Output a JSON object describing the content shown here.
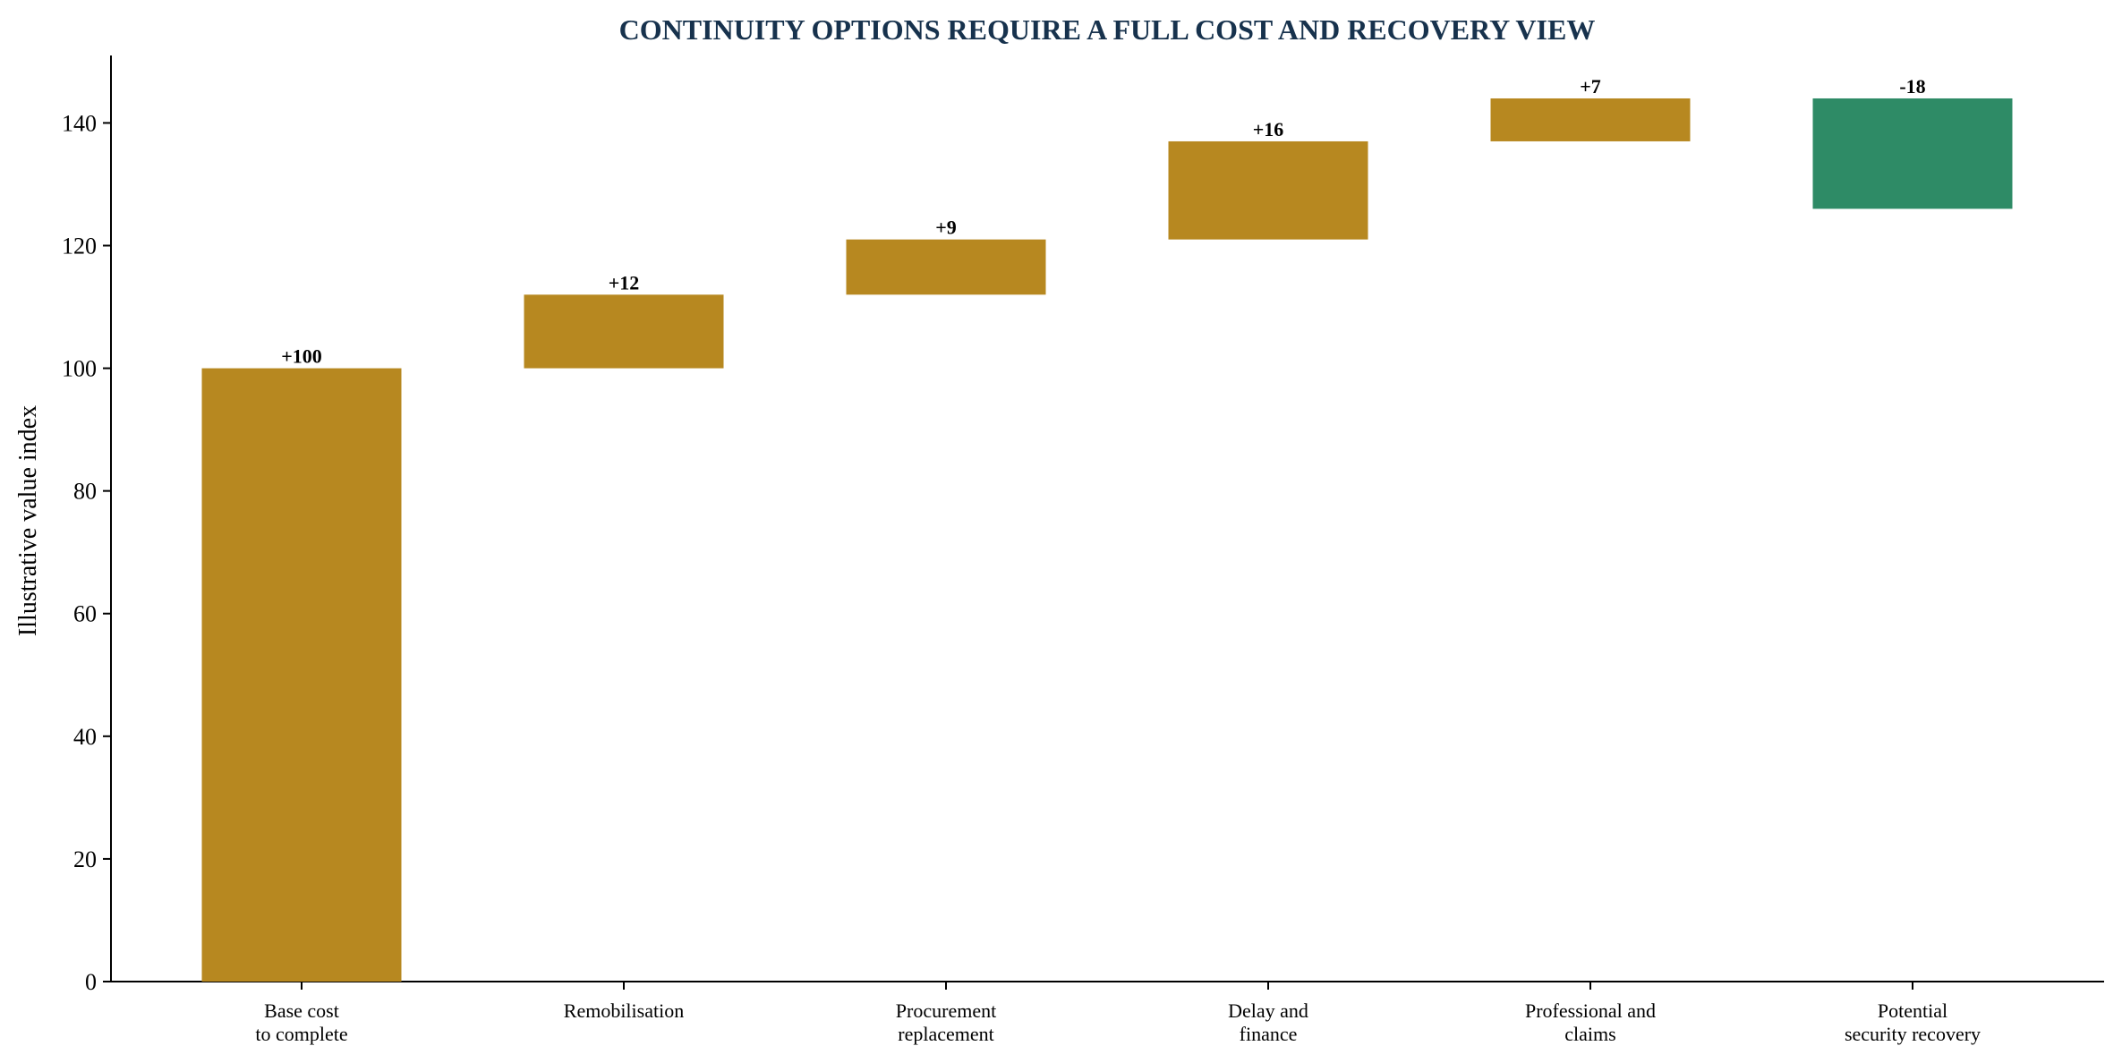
{
  "chart_data": {
    "type": "bar",
    "subtype": "waterfall",
    "title": "CONTINUITY OPTIONS REQUIRE A FULL COST AND RECOVERY VIEW",
    "ylabel": "Illustrative value index",
    "xlabel": "",
    "ylim": [
      0,
      151
    ],
    "yticks": [
      0,
      20,
      40,
      60,
      80,
      100,
      120,
      140
    ],
    "grid": false,
    "categories": [
      [
        "Base cost",
        "to complete"
      ],
      [
        "Remobilisation"
      ],
      [
        "Procurement",
        "replacement"
      ],
      [
        "Delay and",
        "finance"
      ],
      [
        "Professional and",
        "claims"
      ],
      [
        "Potential",
        "security recovery"
      ]
    ],
    "values": [
      100,
      12,
      9,
      16,
      7,
      -18
    ],
    "value_labels": [
      "+100",
      "+12",
      "+9",
      "+16",
      "+7",
      "-18"
    ],
    "colors": {
      "increase": "#b78820",
      "decrease": "#2e8b66",
      "title": "#17324d"
    }
  }
}
